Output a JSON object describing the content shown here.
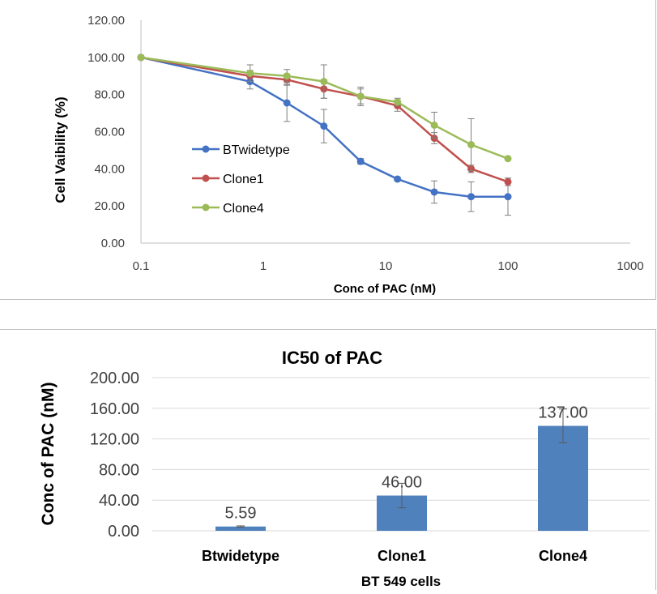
{
  "chart_data": [
    {
      "type": "line",
      "xscale": "log",
      "xlabel": "Conc of PAC (nM)",
      "ylabel": "Cell Vaibility (%)",
      "x_ticks": [
        "0.1",
        "1",
        "10",
        "100",
        "1000"
      ],
      "y_ticks": [
        "0.00",
        "20.00",
        "40.00",
        "60.00",
        "80.00",
        "100.00",
        "120.00"
      ],
      "xlim": [
        0.1,
        1000
      ],
      "ylim": [
        0,
        120
      ],
      "grid": false,
      "legend_position": "left-middle",
      "series": [
        {
          "name": "BTwidetype",
          "color": "#4472c4",
          "x": [
            0.1,
            0.78,
            1.56,
            3.13,
            6.25,
            12.5,
            25,
            50,
            100
          ],
          "y": [
            100,
            87,
            75.5,
            63,
            44,
            34.5,
            27.5,
            25,
            25
          ],
          "err": [
            0,
            4,
            10,
            9,
            1.5,
            1,
            6,
            8,
            10
          ]
        },
        {
          "name": "Clone1",
          "color": "#c0504d",
          "x": [
            0.1,
            0.78,
            1.56,
            3.13,
            6.25,
            12.5,
            25,
            50,
            100
          ],
          "y": [
            100,
            90,
            88,
            83,
            79,
            74,
            56.5,
            40,
            33
          ],
          "err": [
            0,
            3,
            3,
            5,
            4,
            3,
            3,
            2,
            2
          ]
        },
        {
          "name": "Clone4",
          "color": "#9bbb59",
          "x": [
            0.1,
            0.78,
            1.56,
            3.13,
            6.25,
            12.5,
            25,
            50,
            100
          ],
          "y": [
            100,
            91.5,
            90,
            87,
            79,
            76,
            63.5,
            53,
            45.5
          ],
          "err": [
            0,
            4.5,
            3.5,
            9,
            5,
            2,
            7,
            14,
            0
          ]
        }
      ]
    },
    {
      "type": "bar",
      "title": "IC50 of PAC",
      "xlabel": "BT 549 cells",
      "ylabel": "Conc of PAC (nM)",
      "categories": [
        "Btwidetype",
        "Clone1",
        "Clone4"
      ],
      "values": [
        5.59,
        46.0,
        137.0
      ],
      "value_labels": [
        "5.59",
        "46.00",
        "137.00"
      ],
      "errors": [
        0.8,
        16,
        22
      ],
      "bar_color": "#4f81bd",
      "y_ticks": [
        "0.00",
        "40.00",
        "80.00",
        "120.00",
        "160.00",
        "200.00"
      ],
      "ylim": [
        0,
        200
      ],
      "grid": true
    }
  ]
}
